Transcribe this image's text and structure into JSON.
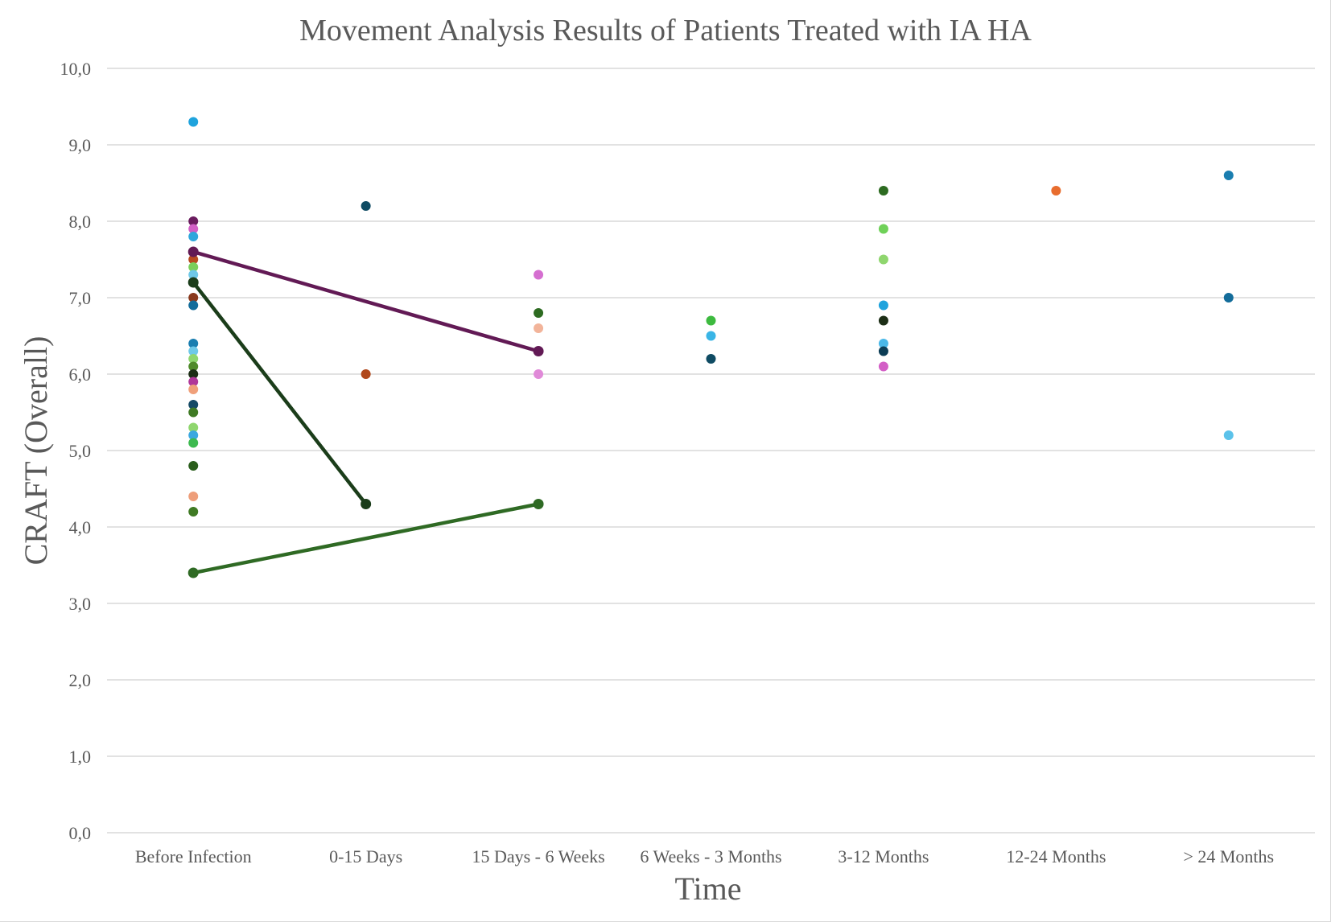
{
  "chart_data": {
    "type": "scatter",
    "title": "Movement Analysis Results of Patients Treated with IA HA",
    "xlabel": "Time",
    "ylabel": "CRAFT (Overall)",
    "categories": [
      "Before Infection",
      "0-15 Days",
      "15 Days - 6 Weeks",
      "6 Weeks - 3 Months",
      "3-12 Months",
      "12-24 Months",
      "> 24 Months"
    ],
    "ylim": [
      0,
      10
    ],
    "yticks": [
      "0,0",
      "1,0",
      "2,0",
      "3,0",
      "4,0",
      "5,0",
      "6,0",
      "7,0",
      "8,0",
      "9,0",
      "10,0"
    ],
    "grid": true,
    "legend": "none",
    "points": [
      {
        "x": "Before Infection",
        "y": 9.3,
        "color": "#1fa3dd"
      },
      {
        "x": "Before Infection",
        "y": 8.0,
        "color": "#6a1b5e"
      },
      {
        "x": "Before Infection",
        "y": 7.9,
        "color": "#d35fc6"
      },
      {
        "x": "Before Infection",
        "y": 7.8,
        "color": "#2fa7dc"
      },
      {
        "x": "Before Infection",
        "y": 7.6,
        "color": "#a3322a"
      },
      {
        "x": "Before Infection",
        "y": 7.5,
        "color": "#b84a1f"
      },
      {
        "x": "Before Infection",
        "y": 7.4,
        "color": "#7acf5b"
      },
      {
        "x": "Before Infection",
        "y": 7.3,
        "color": "#6fc9e8"
      },
      {
        "x": "Before Infection",
        "y": 7.2,
        "color": "#0c3d55"
      },
      {
        "x": "Before Infection",
        "y": 7.0,
        "color": "#8a3a1e"
      },
      {
        "x": "Before Infection",
        "y": 6.9,
        "color": "#136c9a"
      },
      {
        "x": "Before Infection",
        "y": 6.4,
        "color": "#1a7eb0"
      },
      {
        "x": "Before Infection",
        "y": 6.3,
        "color": "#6fc9e8"
      },
      {
        "x": "Before Infection",
        "y": 6.2,
        "color": "#8fd66e"
      },
      {
        "x": "Before Infection",
        "y": 6.1,
        "color": "#4f8a2a"
      },
      {
        "x": "Before Infection",
        "y": 6.0,
        "color": "#1c2e16"
      },
      {
        "x": "Before Infection",
        "y": 5.9,
        "color": "#b0379a"
      },
      {
        "x": "Before Infection",
        "y": 5.8,
        "color": "#f0a07a"
      },
      {
        "x": "Before Infection",
        "y": 5.6,
        "color": "#154a66"
      },
      {
        "x": "Before Infection",
        "y": 5.5,
        "color": "#3f7a24"
      },
      {
        "x": "Before Infection",
        "y": 5.3,
        "color": "#8fd66e"
      },
      {
        "x": "Before Infection",
        "y": 5.2,
        "color": "#3aa8e0"
      },
      {
        "x": "Before Infection",
        "y": 5.1,
        "color": "#3dba4f"
      },
      {
        "x": "Before Infection",
        "y": 4.8,
        "color": "#2a5e1c"
      },
      {
        "x": "Before Infection",
        "y": 4.4,
        "color": "#ee9e7a"
      },
      {
        "x": "Before Infection",
        "y": 4.2,
        "color": "#3f7a24"
      },
      {
        "x": "0-15 Days",
        "y": 8.2,
        "color": "#0f4b63"
      },
      {
        "x": "0-15 Days",
        "y": 6.0,
        "color": "#b0481c"
      },
      {
        "x": "15 Days - 6 Weeks",
        "y": 7.3,
        "color": "#d56fd0"
      },
      {
        "x": "15 Days - 6 Weeks",
        "y": 6.8,
        "color": "#2d6b21"
      },
      {
        "x": "15 Days - 6 Weeks",
        "y": 6.6,
        "color": "#f2b49a"
      },
      {
        "x": "15 Days - 6 Weeks",
        "y": 6.0,
        "color": "#e08ad8"
      },
      {
        "x": "6 Weeks - 3 Months",
        "y": 6.7,
        "color": "#3dba3f"
      },
      {
        "x": "6 Weeks - 3 Months",
        "y": 6.5,
        "color": "#3ab5e6"
      },
      {
        "x": "6 Weeks - 3 Months",
        "y": 6.2,
        "color": "#0f4b63"
      },
      {
        "x": "3-12 Months",
        "y": 8.4,
        "color": "#2d6b21"
      },
      {
        "x": "3-12 Months",
        "y": 7.9,
        "color": "#6fd158"
      },
      {
        "x": "3-12 Months",
        "y": 7.5,
        "color": "#8fd66e"
      },
      {
        "x": "3-12 Months",
        "y": 6.9,
        "color": "#1fa3dd"
      },
      {
        "x": "3-12 Months",
        "y": 6.7,
        "color": "#1c2e16"
      },
      {
        "x": "3-12 Months",
        "y": 6.4,
        "color": "#4ab8e8"
      },
      {
        "x": "3-12 Months",
        "y": 6.3,
        "color": "#0c3d55"
      },
      {
        "x": "3-12 Months",
        "y": 6.1,
        "color": "#d35fc6"
      },
      {
        "x": "12-24 Months",
        "y": 8.4,
        "color": "#e86d2e"
      },
      {
        "x": "> 24 Months",
        "y": 8.6,
        "color": "#1a7eb0"
      },
      {
        "x": "> 24 Months",
        "y": 7.0,
        "color": "#136c9a"
      },
      {
        "x": "> 24 Months",
        "y": 5.2,
        "color": "#5bc2ea"
      }
    ],
    "series": [
      {
        "color": "#621a55",
        "points": [
          {
            "x": "Before Infection",
            "y": 7.6
          },
          {
            "x": "15 Days - 6 Weeks",
            "y": 6.3
          }
        ]
      },
      {
        "color": "#1b3d1a",
        "points": [
          {
            "x": "Before Infection",
            "y": 7.2
          },
          {
            "x": "0-15 Days",
            "y": 4.3
          }
        ]
      },
      {
        "color": "#2f6a24",
        "points": [
          {
            "x": "Before Infection",
            "y": 3.4
          },
          {
            "x": "15 Days - 6 Weeks",
            "y": 4.3
          }
        ]
      }
    ]
  }
}
